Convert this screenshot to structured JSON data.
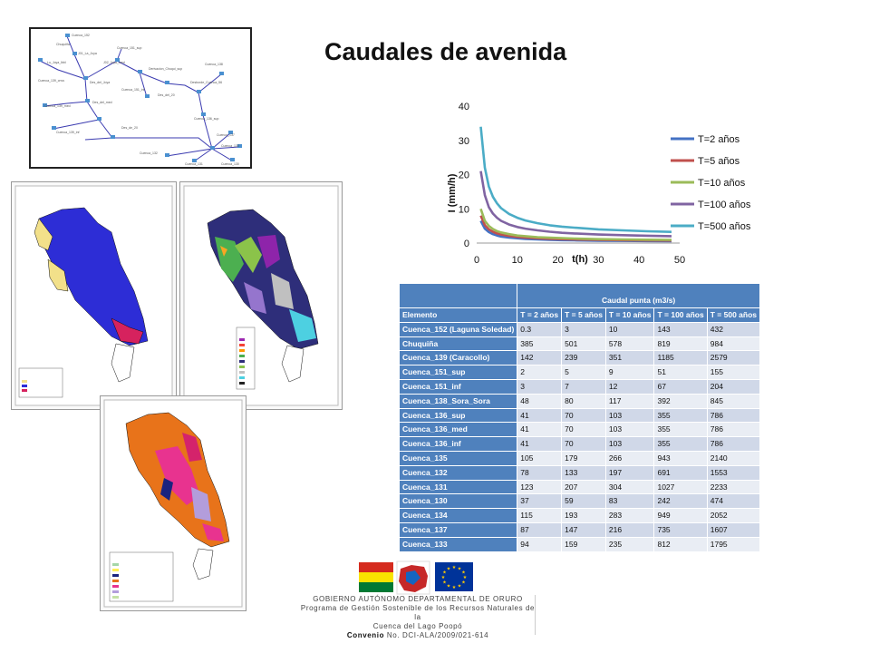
{
  "slide": {
    "title": "Caudales de avenida"
  },
  "chart_data": {
    "type": "line",
    "xlabel": "t(h)",
    "ylabel": "I (mm/h)",
    "xlim": [
      0,
      50
    ],
    "ylim": [
      0,
      40
    ],
    "xticks": [
      "0",
      "10",
      "20",
      "30",
      "40",
      "50"
    ],
    "yticks": [
      "0",
      "10",
      "20",
      "30",
      "40"
    ],
    "legend_position": "right",
    "grid": false,
    "x": [
      1,
      2,
      3,
      4,
      5,
      6,
      8,
      10,
      12,
      15,
      18,
      21,
      24,
      30,
      36,
      42,
      48
    ],
    "series": [
      {
        "name": "T=2 años",
        "color": "#4472c4",
        "values": [
          6.5,
          4.2,
          3.2,
          2.6,
          2.2,
          1.9,
          1.6,
          1.4,
          1.2,
          1.05,
          0.95,
          0.85,
          0.8,
          0.7,
          0.63,
          0.58,
          0.55
        ]
      },
      {
        "name": "T=5 años",
        "color": "#c0504d",
        "values": [
          8.0,
          5.2,
          4.0,
          3.3,
          2.8,
          2.5,
          2.1,
          1.8,
          1.6,
          1.4,
          1.25,
          1.15,
          1.05,
          0.92,
          0.84,
          0.78,
          0.73
        ]
      },
      {
        "name": "T=10 años",
        "color": "#9bbb59",
        "values": [
          10.0,
          6.5,
          5.0,
          4.1,
          3.5,
          3.1,
          2.6,
          2.2,
          2.0,
          1.7,
          1.55,
          1.42,
          1.32,
          1.15,
          1.05,
          0.98,
          0.92
        ]
      },
      {
        "name": "T=100 años",
        "color": "#8064a2",
        "values": [
          21.0,
          14.0,
          10.5,
          8.6,
          7.4,
          6.5,
          5.4,
          4.7,
          4.2,
          3.7,
          3.3,
          3.0,
          2.8,
          2.5,
          2.3,
          2.15,
          2.0
        ]
      },
      {
        "name": "T=500 años",
        "color": "#4bacc6",
        "values": [
          34.0,
          22.0,
          16.5,
          13.5,
          11.6,
          10.2,
          8.5,
          7.4,
          6.6,
          5.8,
          5.2,
          4.8,
          4.5,
          4.0,
          3.7,
          3.45,
          3.25
        ]
      }
    ]
  },
  "table": {
    "group_header": "Caudal punta (m3/s)",
    "columns": [
      "Elemento",
      "T = 2 años",
      "T = 5 años",
      "T = 10 años",
      "T = 100 años",
      "T = 500 años"
    ],
    "rows": [
      [
        "Cuenca_152 (Laguna Soledad)",
        "0.3",
        "3",
        "10",
        "143",
        "432"
      ],
      [
        "Chuquiña",
        "385",
        "501",
        "578",
        "819",
        "984"
      ],
      [
        "Cuenca_139 (Caracollo)",
        "142",
        "239",
        "351",
        "1185",
        "2579"
      ],
      [
        "Cuenca_151_sup",
        "2",
        "5",
        "9",
        "51",
        "155"
      ],
      [
        "Cuenca_151_inf",
        "3",
        "7",
        "12",
        "67",
        "204"
      ],
      [
        "Cuenca_138_Sora_Sora",
        "48",
        "80",
        "117",
        "392",
        "845"
      ],
      [
        "Cuenca_136_sup",
        "41",
        "70",
        "103",
        "355",
        "786"
      ],
      [
        "Cuenca_136_med",
        "41",
        "70",
        "103",
        "355",
        "786"
      ],
      [
        "Cuenca_136_inf",
        "41",
        "70",
        "103",
        "355",
        "786"
      ],
      [
        "Cuenca_135",
        "105",
        "179",
        "266",
        "943",
        "2140"
      ],
      [
        "Cuenca_132",
        "78",
        "133",
        "197",
        "691",
        "1553"
      ],
      [
        "Cuenca_131",
        "123",
        "207",
        "304",
        "1027",
        "2233"
      ],
      [
        "Cuenca_130",
        "37",
        "59",
        "83",
        "242",
        "474"
      ],
      [
        "Cuenca_134",
        "115",
        "193",
        "283",
        "949",
        "2052"
      ],
      [
        "Cuenca_137",
        "87",
        "147",
        "216",
        "735",
        "1607"
      ],
      [
        "Cuenca_133",
        "94",
        "159",
        "235",
        "812",
        "1795"
      ]
    ]
  },
  "footer": {
    "line1": "GOBIERNO AUTÓNOMO DEPARTAMENTAL DE ORURO",
    "line2": "Programa de Gestión Sostenible de los Recursos Naturales de la",
    "line3": "Cuenca del Lago Poopó",
    "line4_bold": "Convenio",
    "line4_rest": " No. DCI-ALA/2009/021-614"
  },
  "colors": {
    "table_header": "#4f81bd",
    "row_odd": "#d0d8e8",
    "row_even": "#e9edf4",
    "bolivia_red": "#d52b1e",
    "bolivia_yellow": "#f9e300",
    "bolivia_green": "#007934",
    "eu_blue": "#003399",
    "eu_star": "#ffcc00"
  }
}
